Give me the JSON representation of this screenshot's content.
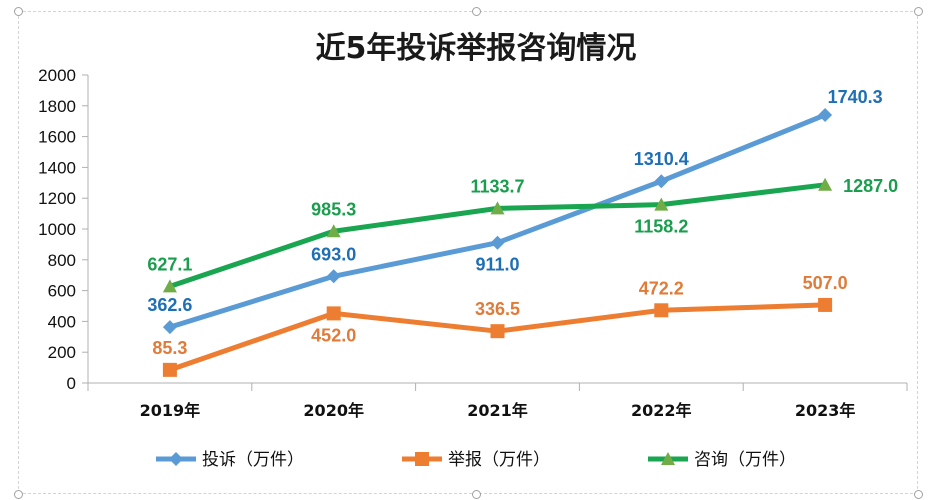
{
  "chart_data": {
    "type": "line",
    "title": "近5年投诉举报咨询情况",
    "xlabel": "",
    "ylabel": "",
    "categories": [
      "2019年",
      "2020年",
      "2021年",
      "2022年",
      "2023年"
    ],
    "ylim": [
      0,
      2000
    ],
    "yticks": [
      "0",
      "200",
      "400",
      "600",
      "800",
      "1000",
      "1200",
      "1400",
      "1600",
      "1800",
      "2000"
    ],
    "ytick_values": [
      0,
      200,
      400,
      600,
      800,
      1000,
      1200,
      1400,
      1600,
      1800,
      2000
    ],
    "grid": false,
    "legend_position": "bottom",
    "series": [
      {
        "name": "投诉（万件）",
        "legend_label": "投诉（万件）",
        "marker": "diamond",
        "line_color": "#5b9bd5",
        "marker_color": "#5b9bd5",
        "label_color": "#1f6fb4",
        "values": [
          362.6,
          693.0,
          911.0,
          1310.4,
          1740.3
        ],
        "labels": [
          "362.6",
          "693.0",
          "911.0",
          "1310.4",
          "1740.3"
        ],
        "label_pos": [
          "above",
          "above",
          "below",
          "above",
          "above"
        ]
      },
      {
        "name": "举报（万件）",
        "legend_label": "举报（万件）",
        "marker": "square",
        "line_color": "#ed7d31",
        "marker_color": "#ed7d31",
        "label_color": "#e07b39",
        "values": [
          85.3,
          452.0,
          336.5,
          472.2,
          507.0
        ],
        "labels": [
          "85.3",
          "452.0",
          "336.5",
          "472.2",
          "507.0"
        ],
        "label_pos": [
          "above",
          "below",
          "above",
          "above",
          "above"
        ]
      },
      {
        "name": "咨询（万件）",
        "legend_label": "咨询（万件）",
        "marker": "triangle",
        "line_color": "#1aa550",
        "marker_color": "#70ad47",
        "label_color": "#1a9e4e",
        "values": [
          627.1,
          985.3,
          1133.7,
          1158.2,
          1287.0
        ],
        "labels": [
          "627.1",
          "985.3",
          "1133.7",
          "1158.2",
          "1287.0"
        ],
        "label_pos": [
          "above",
          "above",
          "above",
          "below",
          "right"
        ]
      }
    ]
  }
}
